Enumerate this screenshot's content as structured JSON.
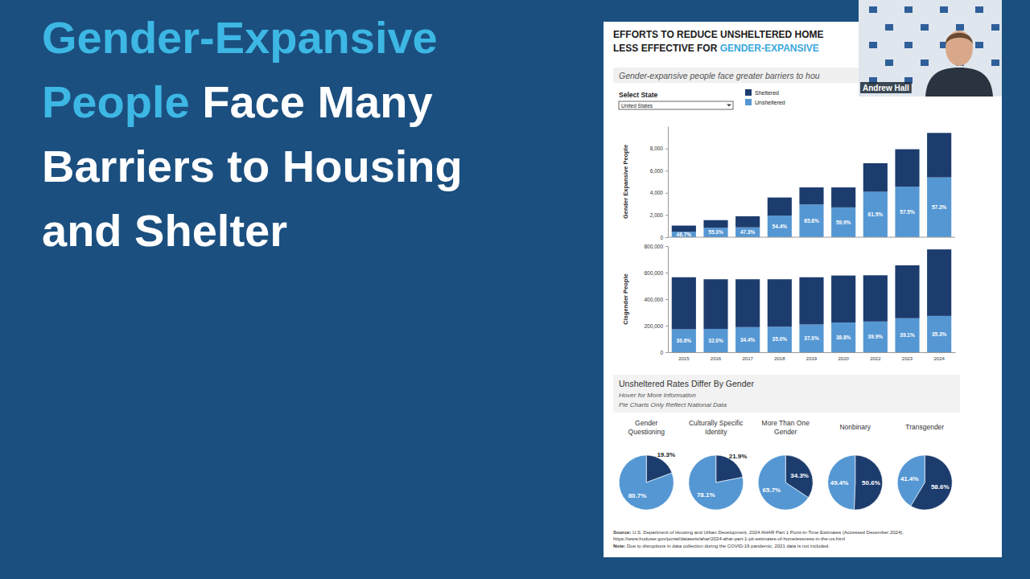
{
  "slide": {
    "title_lines": [
      [
        {
          "text": "Gender-Expansive",
          "color": "#3db7e4"
        }
      ],
      [
        {
          "text": "People",
          "color": "#3db7e4"
        },
        {
          "text": " Face Many",
          "color": "#ffffff"
        }
      ],
      [
        {
          "text": "Barriers to Housing",
          "color": "#ffffff"
        }
      ],
      [
        {
          "text": "and Shelter",
          "color": "#ffffff"
        }
      ]
    ]
  },
  "presenter": {
    "name": "Andrew Hall"
  },
  "dashboard": {
    "title_lines": [
      [
        {
          "text": "EFFORTS TO REDUCE UNSHELTERED HOME",
          "color": "#1a1a1a"
        }
      ],
      [
        {
          "text": "LESS EFFECTIVE FOR ",
          "color": "#1a1a1a"
        },
        {
          "text": "GENDER-EXPANSIVE",
          "color": "#3aa8dc"
        }
      ]
    ],
    "subtitle": "Gender-expansive people face greater barriers to hou",
    "filter_label": "Select State",
    "filter_value": "United States",
    "pie_section": {
      "title": "Unsheltered Rates Differ By Gender",
      "notes": [
        "Hover for More Information",
        "Pie Charts Only Reflect National Data"
      ]
    },
    "source_label": "Source:",
    "source": "U.S. Department of Housing and Urban Development, 2024 AHAR Part 1 Point-in-Time Estimates (Accessed December 2024), https://www.huduser.gov/portal/datasets/ahar/2024-ahar-part-1-pit-estimates-of-homelessness-in-the-us.html",
    "note_label": "Note:",
    "note": "Due to disruptions in data collection during the COVID-19 pandemic, 2021 data is not included."
  },
  "chart_data": [
    {
      "type": "bar",
      "stacked": true,
      "y_label": "Gender Expansive People",
      "categories": [
        "2015",
        "2016",
        "2017",
        "2018",
        "2019",
        "2020",
        "2022",
        "2023",
        "2024"
      ],
      "series": [
        {
          "name": "Sheltered",
          "color": "#1d3c6e",
          "values": [
            560,
            690,
            1000,
            1630,
            1540,
            1800,
            2570,
            3370,
            4010
          ]
        },
        {
          "name": "Unsheltered",
          "color": "#5597d3",
          "values": [
            490,
            850,
            890,
            1950,
            2950,
            2690,
            4100,
            4560,
            5390
          ]
        }
      ],
      "annotations": [
        "46.7%",
        "55.3%",
        "47.3%",
        "54.4%",
        "65.8%",
        "59.9%",
        "61.5%",
        "57.5%",
        "57.3%"
      ],
      "ylim": [
        0,
        10000
      ],
      "yticks": [
        0,
        {
          "value": 2000,
          "label": "2,000"
        },
        {
          "value": 4000,
          "label": "4,000"
        },
        {
          "value": 6000,
          "label": "6,000"
        },
        {
          "value": 8000,
          "label": "8,000"
        }
      ],
      "tick_labels": "y",
      "legend": "top",
      "grid": false
    },
    {
      "type": "bar",
      "stacked": true,
      "y_label": "Cisgender People",
      "categories": [
        "2015",
        "2016",
        "2017",
        "2018",
        "2019",
        "2020",
        "2022",
        "2023",
        "2024"
      ],
      "series": [
        {
          "color": "#1d3c6e",
          "values": [
            392100,
            374000,
            360800,
            357500,
            356000,
            353700,
            348600,
            398900,
            501400
          ]
        },
        {
          "color": "#5597d3",
          "values": [
            172900,
            176000,
            189200,
            192500,
            209000,
            224300,
            231400,
            256100,
            273600
          ]
        }
      ],
      "annotations": [
        "30.6%",
        "32.0%",
        "34.4%",
        "35.0%",
        "37.0%",
        "38.8%",
        "39.9%",
        "39.1%",
        "35.3%"
      ],
      "ylim": [
        0,
        800000
      ],
      "yticks": [
        0,
        {
          "value": 200000,
          "label": "200,000"
        },
        {
          "value": 400000,
          "label": "400,000"
        },
        {
          "value": 600000,
          "label": "600,000"
        },
        {
          "value": 800000,
          "label": "800,000"
        }
      ],
      "grid": false
    },
    {
      "type": "pie",
      "title": "Gender Questioning",
      "values": [
        19.3,
        80.7
      ],
      "value_labels": [
        "19.3%",
        "80.7%"
      ],
      "colors": [
        "#1d3c6e",
        "#5597d3"
      ],
      "data_labels": true
    },
    {
      "type": "pie",
      "title": "Culturally Specific Identity",
      "values": [
        21.9,
        78.1
      ],
      "value_labels": [
        "21.9%",
        "78.1%"
      ],
      "colors": [
        "#1d3c6e",
        "#5597d3"
      ],
      "data_labels": true
    },
    {
      "type": "pie",
      "title": "More Than One Gender",
      "values": [
        34.3,
        65.7
      ],
      "value_labels": [
        "34.3%",
        "65.7%"
      ],
      "colors": [
        "#1d3c6e",
        "#5597d3"
      ],
      "data_labels": true
    },
    {
      "type": "pie",
      "title": "Nonbinary",
      "values": [
        50.6,
        49.4
      ],
      "value_labels": [
        "50.6%",
        "49.4%"
      ],
      "colors": [
        "#1d3c6e",
        "#5597d3"
      ],
      "data_labels": true
    },
    {
      "type": "pie",
      "title": "Transgender",
      "values": [
        58.6,
        41.4
      ],
      "value_labels": [
        "58.6%",
        "41.4%"
      ],
      "colors": [
        "#1d3c6e",
        "#5597d3"
      ],
      "data_labels": true
    }
  ]
}
